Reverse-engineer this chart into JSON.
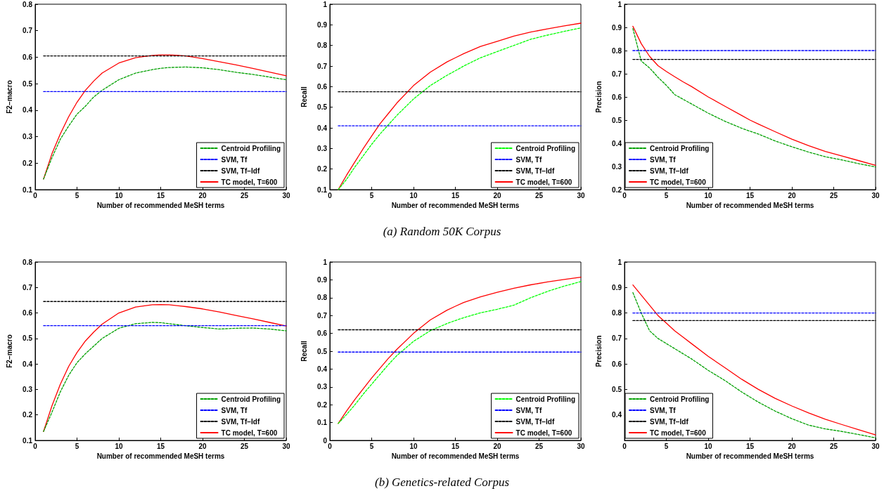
{
  "chart_data": [
    {
      "type": "line",
      "xlabel": "Number of recommended MeSH terms",
      "ylabel": "F2−macro",
      "x": [
        1,
        2,
        3,
        4,
        5,
        6,
        7,
        8,
        10,
        12,
        14,
        15,
        16,
        18,
        20,
        22,
        24,
        26,
        28,
        30
      ],
      "xlim": [
        0,
        30
      ],
      "xticks": [
        0,
        5,
        10,
        15,
        20,
        25,
        30
      ],
      "ylim": [
        0.1,
        0.8
      ],
      "yticks": [
        0.1,
        0.2,
        0.3,
        0.4,
        0.5,
        0.6,
        0.7,
        0.8
      ],
      "legend": "bottom right",
      "series": [
        {
          "name": "Centroid Profiling",
          "color": "#00a000",
          "line_style": "dashed",
          "values": [
            0.14,
            0.22,
            0.29,
            0.34,
            0.385,
            0.415,
            0.45,
            0.475,
            0.515,
            0.54,
            0.553,
            0.558,
            0.561,
            0.563,
            0.56,
            0.553,
            0.543,
            0.535,
            0.525,
            0.515
          ]
        },
        {
          "name": "SVM, Tf",
          "color": "#0000ff",
          "line_style": "dashed",
          "values": [
            0.47,
            0.47,
            0.47,
            0.47,
            0.47,
            0.47,
            0.47,
            0.47,
            0.47,
            0.47,
            0.47,
            0.47,
            0.47,
            0.47,
            0.47,
            0.47,
            0.47,
            0.47,
            0.47,
            0.47
          ]
        },
        {
          "name": "SVM, Tf−Idf",
          "color": "#000000",
          "line_style": "dashed",
          "values": [
            0.605,
            0.605,
            0.605,
            0.605,
            0.605,
            0.605,
            0.605,
            0.605,
            0.605,
            0.605,
            0.605,
            0.605,
            0.605,
            0.605,
            0.605,
            0.605,
            0.605,
            0.605,
            0.605,
            0.605
          ]
        },
        {
          "name": "TC model, T=600",
          "color": "#ff0000",
          "line_style": "solid",
          "values": [
            0.14,
            0.235,
            0.31,
            0.375,
            0.43,
            0.475,
            0.51,
            0.54,
            0.578,
            0.598,
            0.607,
            0.609,
            0.609,
            0.605,
            0.595,
            0.583,
            0.571,
            0.558,
            0.544,
            0.53
          ]
        }
      ]
    },
    {
      "type": "line",
      "xlabel": "Number of recommended MeSH terms",
      "ylabel": "Recall",
      "annotations": [
        "(a) Random 50K Corpus"
      ],
      "x": [
        1,
        2,
        3,
        4,
        5,
        6,
        7,
        8,
        10,
        12,
        14,
        15,
        16,
        18,
        20,
        22,
        24,
        26,
        28,
        30
      ],
      "xlim": [
        0,
        30
      ],
      "xticks": [
        0,
        5,
        10,
        15,
        20,
        25,
        30
      ],
      "ylim": [
        0.1,
        1
      ],
      "yticks": [
        0.1,
        0.2,
        0.3,
        0.4,
        0.5,
        0.6,
        0.7,
        0.8,
        0.9,
        1
      ],
      "legend": "bottom right",
      "series": [
        {
          "name": "Centroid Profiling",
          "color": "#00ff00",
          "line_style": "dashed",
          "values": [
            0.1,
            0.15,
            0.21,
            0.265,
            0.32,
            0.37,
            0.415,
            0.46,
            0.54,
            0.605,
            0.655,
            0.677,
            0.7,
            0.74,
            0.77,
            0.8,
            0.83,
            0.85,
            0.868,
            0.885
          ]
        },
        {
          "name": "SVM, Tf",
          "color": "#0000ff",
          "line_style": "dashed",
          "values": [
            0.41,
            0.41,
            0.41,
            0.41,
            0.41,
            0.41,
            0.41,
            0.41,
            0.41,
            0.41,
            0.41,
            0.41,
            0.41,
            0.41,
            0.41,
            0.41,
            0.41,
            0.41,
            0.41,
            0.41
          ]
        },
        {
          "name": "SVM, Tf−Idf",
          "color": "#000000",
          "line_style": "dashed",
          "values": [
            0.575,
            0.575,
            0.575,
            0.575,
            0.575,
            0.575,
            0.575,
            0.575,
            0.575,
            0.575,
            0.575,
            0.575,
            0.575,
            0.575,
            0.575,
            0.575,
            0.575,
            0.575,
            0.575,
            0.575
          ]
        },
        {
          "name": "TC model, T=600",
          "color": "#ff0000",
          "line_style": "solid",
          "values": [
            0.1,
            0.17,
            0.235,
            0.3,
            0.36,
            0.42,
            0.47,
            0.52,
            0.605,
            0.67,
            0.72,
            0.74,
            0.76,
            0.795,
            0.82,
            0.845,
            0.865,
            0.88,
            0.895,
            0.908
          ]
        }
      ]
    },
    {
      "type": "line",
      "xlabel": "Number of recommended MeSH terms",
      "ylabel": "Precision",
      "x": [
        1,
        2,
        3,
        4,
        5,
        6,
        7,
        8,
        10,
        12,
        14,
        15,
        16,
        18,
        20,
        22,
        24,
        26,
        28,
        30
      ],
      "xlim": [
        0,
        30
      ],
      "xticks": [
        0,
        5,
        10,
        15,
        20,
        25,
        30
      ],
      "ylim": [
        0.2,
        1
      ],
      "yticks": [
        0.2,
        0.3,
        0.4,
        0.5,
        0.6,
        0.7,
        0.8,
        0.9,
        1
      ],
      "legend": "bottom left",
      "series": [
        {
          "name": "Centroid Profiling",
          "color": "#00a000",
          "line_style": "dashed",
          "values": [
            0.895,
            0.755,
            0.725,
            0.685,
            0.65,
            0.61,
            0.59,
            0.57,
            0.53,
            0.495,
            0.465,
            0.452,
            0.44,
            0.41,
            0.385,
            0.362,
            0.342,
            0.328,
            0.312,
            0.298
          ]
        },
        {
          "name": "SVM, Tf",
          "color": "#0000ff",
          "line_style": "dashed",
          "values": [
            0.8,
            0.8,
            0.8,
            0.8,
            0.8,
            0.8,
            0.8,
            0.8,
            0.8,
            0.8,
            0.8,
            0.8,
            0.8,
            0.8,
            0.8,
            0.8,
            0.8,
            0.8,
            0.8,
            0.8
          ]
        },
        {
          "name": "SVM, Tf−Idf",
          "color": "#000000",
          "line_style": "dashed",
          "values": [
            0.762,
            0.762,
            0.762,
            0.762,
            0.762,
            0.762,
            0.762,
            0.762,
            0.762,
            0.762,
            0.762,
            0.762,
            0.762,
            0.762,
            0.762,
            0.762,
            0.762,
            0.762,
            0.762,
            0.762
          ]
        },
        {
          "name": "TC model, T=600",
          "color": "#ff0000",
          "line_style": "solid",
          "values": [
            0.905,
            0.83,
            0.775,
            0.735,
            0.71,
            0.687,
            0.665,
            0.645,
            0.6,
            0.56,
            0.52,
            0.5,
            0.483,
            0.45,
            0.418,
            0.39,
            0.365,
            0.345,
            0.325,
            0.305
          ]
        }
      ]
    },
    {
      "type": "line",
      "xlabel": "Number of recommended MeSH terms",
      "ylabel": "F2−macro",
      "x": [
        1,
        2,
        3,
        4,
        5,
        6,
        7,
        8,
        10,
        12,
        14,
        15,
        16,
        18,
        20,
        22,
        24,
        26,
        28,
        30
      ],
      "xlim": [
        0,
        30
      ],
      "xticks": [
        0,
        5,
        10,
        15,
        20,
        25,
        30
      ],
      "ylim": [
        0.1,
        0.8
      ],
      "yticks": [
        0.1,
        0.2,
        0.3,
        0.4,
        0.5,
        0.6,
        0.7,
        0.8
      ],
      "legend": "bottom right",
      "series": [
        {
          "name": "Centroid Profiling",
          "color": "#00a000",
          "line_style": "dashed",
          "values": [
            0.135,
            0.21,
            0.29,
            0.355,
            0.405,
            0.44,
            0.47,
            0.5,
            0.54,
            0.558,
            0.563,
            0.562,
            0.558,
            0.55,
            0.543,
            0.537,
            0.54,
            0.541,
            0.537,
            0.53
          ]
        },
        {
          "name": "SVM, Tf",
          "color": "#0000ff",
          "line_style": "dashed",
          "values": [
            0.55,
            0.55,
            0.55,
            0.55,
            0.55,
            0.55,
            0.55,
            0.55,
            0.55,
            0.55,
            0.55,
            0.55,
            0.55,
            0.55,
            0.55,
            0.55,
            0.55,
            0.55,
            0.55,
            0.55
          ]
        },
        {
          "name": "SVM, Tf−Idf",
          "color": "#000000",
          "line_style": "dashed",
          "values": [
            0.645,
            0.645,
            0.645,
            0.645,
            0.645,
            0.645,
            0.645,
            0.645,
            0.645,
            0.645,
            0.645,
            0.645,
            0.645,
            0.645,
            0.645,
            0.645,
            0.645,
            0.645,
            0.645,
            0.645
          ]
        },
        {
          "name": "TC model, T=600",
          "color": "#ff0000",
          "line_style": "solid",
          "values": [
            0.135,
            0.235,
            0.32,
            0.39,
            0.445,
            0.49,
            0.525,
            0.556,
            0.6,
            0.623,
            0.632,
            0.633,
            0.632,
            0.625,
            0.616,
            0.604,
            0.59,
            0.577,
            0.563,
            0.549
          ]
        }
      ]
    },
    {
      "type": "line",
      "xlabel": "Number of recommended MeSH terms",
      "ylabel": "Recall",
      "annotations": [
        "(b) Genetics-related Corpus"
      ],
      "x": [
        1,
        2,
        3,
        4,
        5,
        6,
        7,
        8,
        10,
        12,
        14,
        15,
        16,
        18,
        20,
        22,
        24,
        26,
        28,
        30
      ],
      "xlim": [
        0,
        30
      ],
      "xticks": [
        0,
        5,
        10,
        15,
        20,
        25,
        30
      ],
      "ylim": [
        0,
        1
      ],
      "yticks": [
        0,
        0.1,
        0.2,
        0.3,
        0.4,
        0.5,
        0.6,
        0.7,
        0.8,
        0.9,
        1
      ],
      "legend": "bottom right",
      "series": [
        {
          "name": "Centroid Profiling",
          "color": "#00ff00",
          "line_style": "dashed",
          "values": [
            0.095,
            0.145,
            0.2,
            0.26,
            0.315,
            0.37,
            0.425,
            0.475,
            0.555,
            0.615,
            0.655,
            0.672,
            0.688,
            0.715,
            0.735,
            0.758,
            0.8,
            0.835,
            0.865,
            0.89
          ]
        },
        {
          "name": "SVM, Tf",
          "color": "#0000ff",
          "line_style": "dashed",
          "values": [
            0.495,
            0.495,
            0.495,
            0.495,
            0.495,
            0.495,
            0.495,
            0.495,
            0.495,
            0.495,
            0.495,
            0.495,
            0.495,
            0.495,
            0.495,
            0.495,
            0.495,
            0.495,
            0.495,
            0.495
          ]
        },
        {
          "name": "SVM, Tf−Idf",
          "color": "#000000",
          "line_style": "dashed",
          "values": [
            0.62,
            0.62,
            0.62,
            0.62,
            0.62,
            0.62,
            0.62,
            0.62,
            0.62,
            0.62,
            0.62,
            0.62,
            0.62,
            0.62,
            0.62,
            0.62,
            0.62,
            0.62,
            0.62,
            0.62
          ]
        },
        {
          "name": "TC model, T=600",
          "color": "#ff0000",
          "line_style": "solid",
          "values": [
            0.095,
            0.165,
            0.23,
            0.29,
            0.35,
            0.405,
            0.46,
            0.51,
            0.6,
            0.675,
            0.73,
            0.752,
            0.773,
            0.805,
            0.83,
            0.853,
            0.872,
            0.888,
            0.902,
            0.915
          ]
        }
      ]
    },
    {
      "type": "line",
      "xlabel": "Number of recommended MeSH terms",
      "ylabel": "Precision",
      "x": [
        1,
        2,
        3,
        4,
        5,
        6,
        7,
        8,
        10,
        12,
        14,
        15,
        16,
        18,
        20,
        22,
        24,
        26,
        28,
        30
      ],
      "xlim": [
        0,
        30
      ],
      "xticks": [
        0,
        5,
        10,
        15,
        20,
        25,
        30
      ],
      "ylim": [
        0.3,
        1
      ],
      "yticks": [
        0.4,
        0.5,
        0.6,
        0.7,
        0.8,
        0.9,
        1
      ],
      "legend": "bottom left",
      "series": [
        {
          "name": "Centroid Profiling",
          "color": "#00a000",
          "line_style": "dashed",
          "values": [
            0.88,
            0.8,
            0.73,
            0.7,
            0.68,
            0.66,
            0.64,
            0.62,
            0.575,
            0.535,
            0.49,
            0.47,
            0.45,
            0.415,
            0.385,
            0.36,
            0.345,
            0.335,
            0.323,
            0.31
          ]
        },
        {
          "name": "SVM, Tf",
          "color": "#0000ff",
          "line_style": "dashed",
          "values": [
            0.8,
            0.8,
            0.8,
            0.8,
            0.8,
            0.8,
            0.8,
            0.8,
            0.8,
            0.8,
            0.8,
            0.8,
            0.8,
            0.8,
            0.8,
            0.8,
            0.8,
            0.8,
            0.8,
            0.8
          ]
        },
        {
          "name": "SVM, Tf−Idf",
          "color": "#000000",
          "line_style": "dashed",
          "values": [
            0.77,
            0.77,
            0.77,
            0.77,
            0.77,
            0.77,
            0.77,
            0.77,
            0.77,
            0.77,
            0.77,
            0.77,
            0.77,
            0.77,
            0.77,
            0.77,
            0.77,
            0.77,
            0.77,
            0.77
          ]
        },
        {
          "name": "TC model, T=600",
          "color": "#ff0000",
          "line_style": "solid",
          "values": [
            0.91,
            0.87,
            0.83,
            0.79,
            0.76,
            0.73,
            0.705,
            0.68,
            0.63,
            0.585,
            0.54,
            0.52,
            0.5,
            0.465,
            0.435,
            0.408,
            0.383,
            0.362,
            0.342,
            0.322
          ]
        }
      ]
    }
  ]
}
